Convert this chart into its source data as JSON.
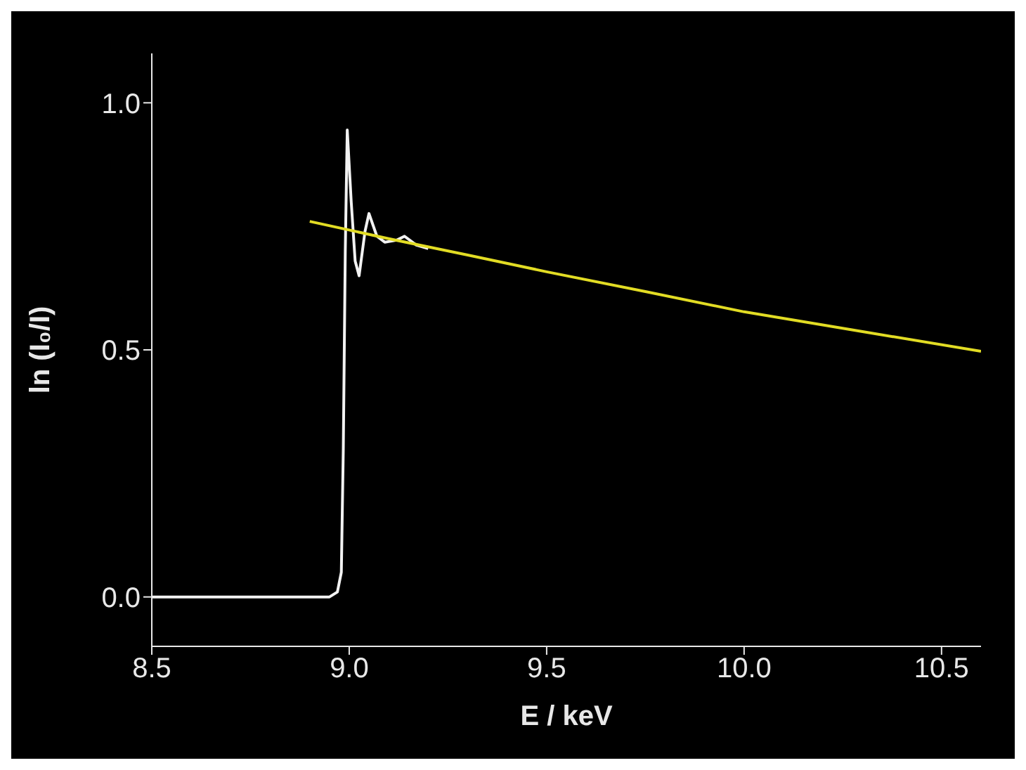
{
  "chart_data": {
    "type": "line",
    "xlabel": "E / keV",
    "ylabel": "ln (I₀/I)",
    "xlim": [
      8.5,
      10.6
    ],
    "ylim": [
      -0.1,
      1.1
    ],
    "xticks": [
      8.5,
      {
        "value": 9,
        "label": "9.0"
      },
      9.5,
      {
        "value": 10,
        "label": "10.0"
      },
      10.5
    ],
    "yticks": [
      {
        "value": 0,
        "label": "0.0"
      },
      0.5,
      {
        "value": 1,
        "label": "1.0"
      }
    ],
    "marker": "none",
    "line_style": "solid",
    "series": [
      {
        "color": "#f2f2f2",
        "x": [
          8.5,
          8.8,
          8.95,
          8.97,
          8.98,
          8.985,
          8.99,
          8.995,
          9.005,
          9.015,
          9.025,
          9.04,
          9.05,
          9.07,
          9.09,
          9.12,
          9.14,
          9.17,
          9.2
        ],
        "values": [
          0,
          0,
          0,
          0.01,
          0.05,
          0.3,
          0.7,
          0.945,
          0.8,
          0.68,
          0.65,
          0.74,
          0.776,
          0.73,
          0.718,
          0.722,
          0.73,
          0.712,
          0.705
        ]
      },
      {
        "color": "#e2dc24",
        "x": [
          8.9,
          9.1,
          9.3,
          9.5,
          9.75,
          10.0,
          10.3,
          10.6
        ],
        "values": [
          0.76,
          0.725,
          0.692,
          0.658,
          0.618,
          0.577,
          0.537,
          0.497
        ]
      }
    ]
  }
}
